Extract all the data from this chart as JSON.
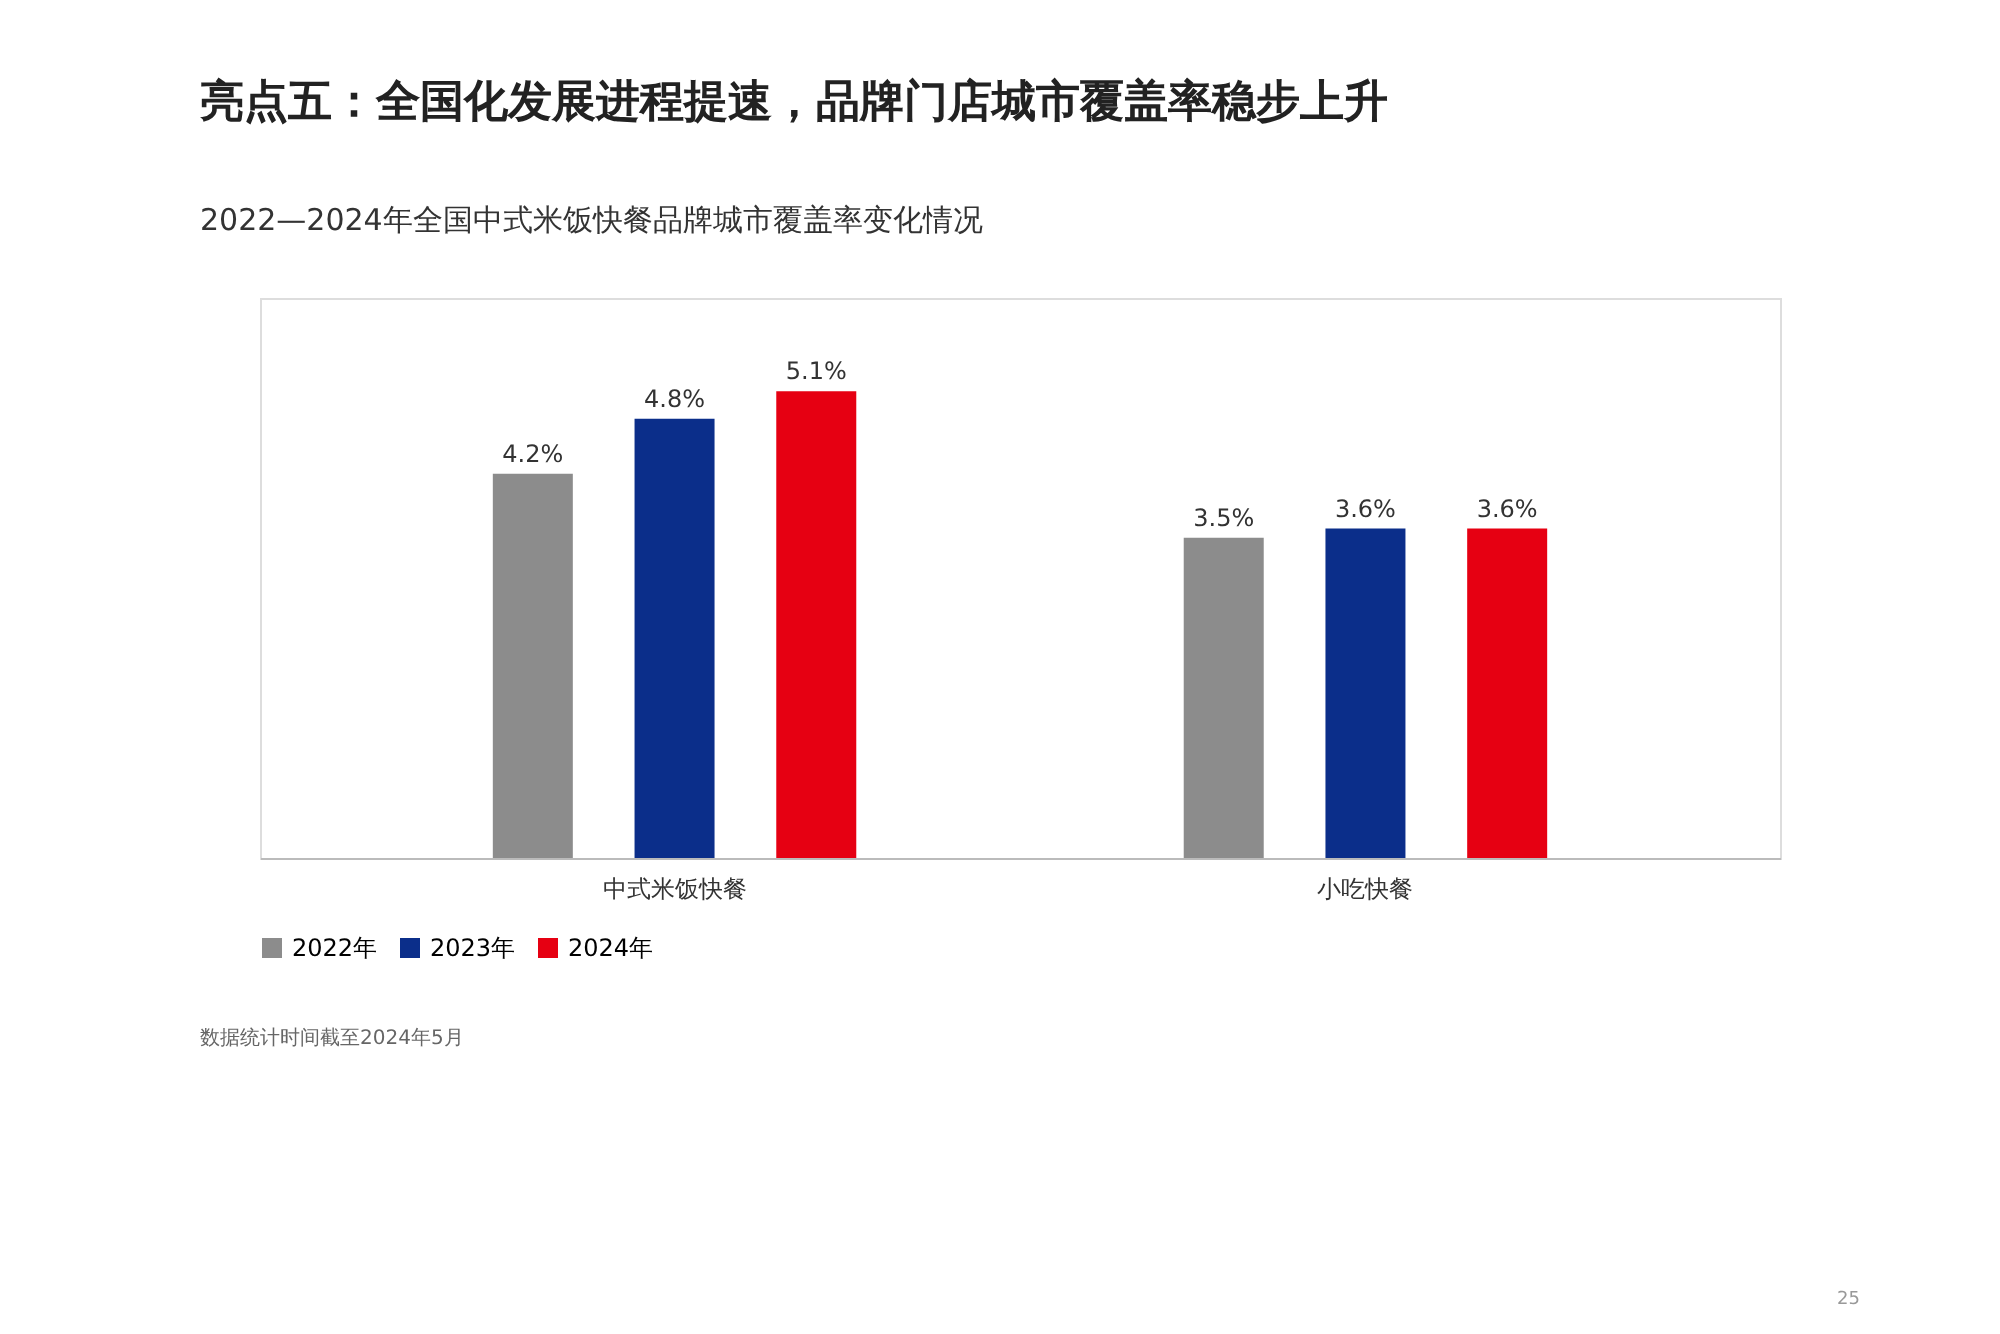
{
  "chart_data": {
    "type": "bar",
    "title": "亮点五：全国化发展进程提速，品牌门店城市覆盖率稳步上升",
    "subtitle": "2022—2024年全国中式米饭快餐品牌城市覆盖率变化情况",
    "categories": [
      "中式米饭快餐",
      "小吃快餐"
    ],
    "series": [
      {
        "name": "2022年",
        "color": "#8c8c8c",
        "values": [
          4.2,
          3.5
        ],
        "value_labels": [
          "4.2%",
          "3.5%"
        ]
      },
      {
        "name": "2023年",
        "color": "#0b2e8a",
        "values": [
          4.8,
          3.6
        ],
        "value_labels": [
          "4.8%",
          "3.6%"
        ]
      },
      {
        "name": "2024年",
        "color": "#e60012",
        "values": [
          5.1,
          3.6
        ],
        "value_labels": [
          "5.1%",
          "3.6%"
        ]
      }
    ],
    "legend": "bottom",
    "grid": false,
    "annotations": [
      "数据统计时间截至2024年5月",
      "25"
    ]
  }
}
